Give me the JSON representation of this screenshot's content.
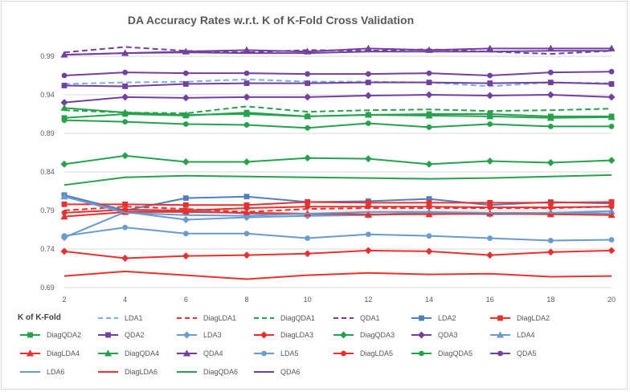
{
  "chart_data": {
    "type": "line",
    "title": "DA Accuracy Rates w.r.t. K of K-Fold Cross Validation",
    "xlabel": "K of K-Fold",
    "ylabel": "",
    "x": [
      2,
      4,
      6,
      8,
      10,
      12,
      14,
      16,
      18,
      20
    ],
    "ylim": [
      0.69,
      1.015
    ],
    "yticks": [
      0.69,
      0.74,
      0.79,
      0.84,
      0.89,
      0.94,
      0.99
    ],
    "ytick_labels": [
      "0.69",
      "0.74",
      "0.79",
      "0.84",
      "0.89",
      "0.94",
      "0.99"
    ],
    "xticks": [
      2,
      4,
      6,
      8,
      10,
      12,
      14,
      16,
      18,
      20
    ],
    "grid": "horizontal",
    "legend_position": "bottom",
    "series": [
      {
        "name": "LDA1",
        "color": "#7bb0e0",
        "dash": "dashed",
        "marker": "none",
        "values": [
          0.954,
          0.956,
          0.957,
          0.96,
          0.957,
          0.957,
          0.956,
          0.951,
          0.956,
          0.955
        ]
      },
      {
        "name": "DiagLDA1",
        "color": "#e8312e",
        "dash": "dashed",
        "marker": "none",
        "values": [
          0.79,
          0.795,
          0.792,
          0.788,
          0.792,
          0.793,
          0.793,
          0.793,
          0.793,
          0.795
        ]
      },
      {
        "name": "DiagQDA1",
        "color": "#26a24d",
        "dash": "dashed",
        "marker": "none",
        "values": [
          0.92,
          0.917,
          0.916,
          0.925,
          0.918,
          0.92,
          0.921,
          0.919,
          0.92,
          0.922
        ]
      },
      {
        "name": "QDA1",
        "color": "#7240a0",
        "dash": "dashed",
        "marker": "none",
        "values": [
          0.995,
          1.002,
          0.997,
          0.995,
          0.998,
          0.997,
          0.999,
          0.996,
          0.993,
          0.997
        ]
      },
      {
        "name": "LDA2",
        "color": "#4f7fc0",
        "dash": "solid",
        "marker": "square",
        "values": [
          0.81,
          0.79,
          0.806,
          0.808,
          0.801,
          0.802,
          0.805,
          0.797,
          0.801,
          0.799
        ]
      },
      {
        "name": "DiagLDA2",
        "color": "#e8312e",
        "dash": "solid",
        "marker": "square",
        "values": [
          0.798,
          0.798,
          0.797,
          0.797,
          0.801,
          0.8,
          0.8,
          0.8,
          0.8,
          0.801
        ]
      },
      {
        "name": "DiagQDA2",
        "color": "#26a24d",
        "dash": "solid",
        "marker": "square",
        "values": [
          0.91,
          0.915,
          0.913,
          0.917,
          0.912,
          0.914,
          0.915,
          0.915,
          0.912,
          0.912
        ]
      },
      {
        "name": "QDA2",
        "color": "#7240a0",
        "dash": "solid",
        "marker": "square",
        "values": [
          0.952,
          0.951,
          0.954,
          0.955,
          0.955,
          0.956,
          0.956,
          0.955,
          0.956,
          0.954
        ]
      },
      {
        "name": "LDA3",
        "color": "#6a9bcf",
        "dash": "solid",
        "marker": "diamond",
        "values": [
          0.755,
          0.788,
          0.778,
          0.781,
          0.783,
          0.784,
          0.786,
          0.785,
          0.786,
          0.786
        ]
      },
      {
        "name": "DiagLDA3",
        "color": "#e8312e",
        "dash": "solid",
        "marker": "diamond",
        "values": [
          0.737,
          0.728,
          0.731,
          0.732,
          0.734,
          0.738,
          0.737,
          0.732,
          0.736,
          0.738
        ]
      },
      {
        "name": "DiagQDA3",
        "color": "#26a24d",
        "dash": "solid",
        "marker": "diamond",
        "values": [
          0.85,
          0.861,
          0.853,
          0.853,
          0.858,
          0.857,
          0.85,
          0.854,
          0.852,
          0.855
        ]
      },
      {
        "name": "QDA3",
        "color": "#7240a0",
        "dash": "solid",
        "marker": "diamond",
        "values": [
          0.93,
          0.937,
          0.936,
          0.937,
          0.937,
          0.939,
          0.94,
          0.939,
          0.94,
          0.937
        ]
      },
      {
        "name": "LDA4",
        "color": "#6a9bcf",
        "dash": "solid",
        "marker": "triangle",
        "values": [
          0.808,
          0.788,
          0.79,
          0.786,
          0.785,
          0.784,
          0.788,
          0.786,
          0.787,
          0.789
        ]
      },
      {
        "name": "DiagLDA4",
        "color": "#e8312e",
        "dash": "solid",
        "marker": "triangle",
        "values": [
          0.782,
          0.788,
          0.788,
          0.787,
          0.786,
          0.785,
          0.785,
          0.786,
          0.785,
          0.784
        ]
      },
      {
        "name": "DiagQDA4",
        "color": "#26a24d",
        "dash": "solid",
        "marker": "triangle",
        "values": [
          0.923,
          0.917,
          0.914,
          0.915,
          0.912,
          0.914,
          0.913,
          0.912,
          0.91,
          0.911
        ]
      },
      {
        "name": "QDA4",
        "color": "#7240a0",
        "dash": "solid",
        "marker": "triangle",
        "values": [
          0.992,
          0.994,
          0.996,
          0.998,
          0.996,
          1.0,
          0.998,
          1.0,
          1.0,
          1.0
        ]
      },
      {
        "name": "LDA5",
        "color": "#6a9bcf",
        "dash": "solid",
        "marker": "circle",
        "values": [
          0.757,
          0.768,
          0.76,
          0.76,
          0.754,
          0.759,
          0.757,
          0.754,
          0.751,
          0.752
        ]
      },
      {
        "name": "DiagLDA5",
        "color": "#e8312e",
        "dash": "solid",
        "marker": "circle",
        "values": [
          0.787,
          0.791,
          0.79,
          0.793,
          0.795,
          0.795,
          0.795,
          0.794,
          0.794,
          0.795
        ]
      },
      {
        "name": "DiagQDA5",
        "color": "#26a24d",
        "dash": "solid",
        "marker": "circle",
        "values": [
          0.907,
          0.905,
          0.902,
          0.901,
          0.897,
          0.903,
          0.898,
          0.902,
          0.899,
          0.899
        ]
      },
      {
        "name": "QDA5",
        "color": "#7240a0",
        "dash": "solid",
        "marker": "circle",
        "values": [
          0.965,
          0.969,
          0.968,
          0.968,
          0.967,
          0.967,
          0.968,
          0.965,
          0.969,
          0.97
        ]
      },
      {
        "name": "LDA6",
        "color": "#6a9bcf",
        "dash": "solid",
        "marker": "none",
        "values": [
          0.808,
          0.787,
          0.784,
          0.783,
          0.786,
          0.788,
          0.788,
          0.787,
          0.787,
          0.786
        ]
      },
      {
        "name": "DiagLDA6",
        "color": "#e8312e",
        "dash": "solid",
        "marker": "none",
        "values": [
          0.705,
          0.711,
          0.706,
          0.701,
          0.706,
          0.709,
          0.707,
          0.708,
          0.704,
          0.705
        ]
      },
      {
        "name": "DiagQDA6",
        "color": "#26a24d",
        "dash": "solid",
        "marker": "none",
        "values": [
          0.823,
          0.833,
          0.835,
          0.834,
          0.833,
          0.832,
          0.831,
          0.832,
          0.834,
          0.836
        ]
      },
      {
        "name": "QDA6",
        "color": "#7240a0",
        "dash": "solid",
        "marker": "none",
        "values": [
          0.992,
          0.994,
          0.995,
          0.994,
          0.994,
          0.996,
          0.996,
          0.996,
          0.997,
          0.997
        ]
      }
    ]
  }
}
